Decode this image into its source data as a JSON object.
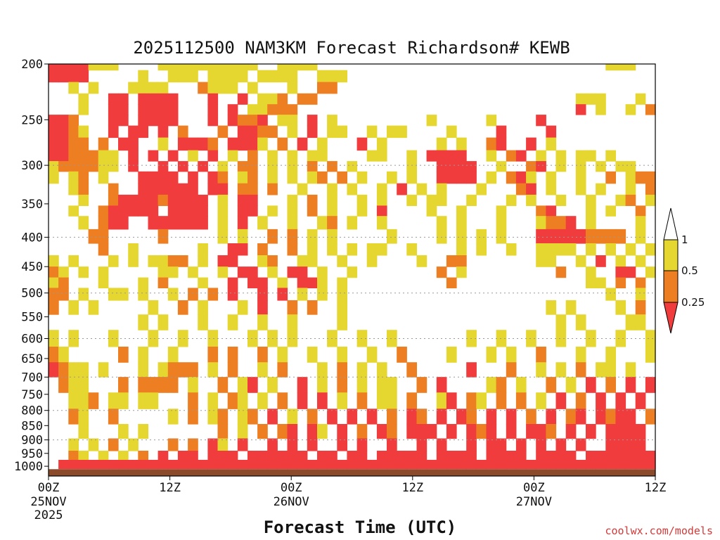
{
  "chart_data": {
    "type": "heatmap",
    "title": "2025112500 NAM3KM Forecast Richardson# KEWB",
    "xlabel": "Forecast Time (UTC)",
    "ylabel": "",
    "x_range_hours": [
      0,
      60
    ],
    "y_axis": {
      "type": "log-pressure",
      "range_hPa": [
        1000,
        200
      ],
      "inverted": true
    },
    "y_ticks": [
      200,
      250,
      300,
      350,
      400,
      450,
      500,
      550,
      600,
      650,
      700,
      750,
      800,
      850,
      900,
      950,
      1000
    ],
    "y_gridlines": [
      300,
      400,
      500,
      600,
      700,
      800,
      900
    ],
    "x_ticks": [
      {
        "hour": 0,
        "label": "00Z",
        "date": "25NOV",
        "year": "2025"
      },
      {
        "hour": 12,
        "label": "12Z",
        "date": "",
        "year": ""
      },
      {
        "hour": 24,
        "label": "00Z",
        "date": "26NOV",
        "year": ""
      },
      {
        "hour": 36,
        "label": "12Z",
        "date": "",
        "year": ""
      },
      {
        "hour": 48,
        "label": "00Z",
        "date": "27NOV",
        "year": ""
      },
      {
        "hour": 60,
        "label": "12Z",
        "date": "",
        "year": ""
      }
    ],
    "colorbar": {
      "labels": [
        "1",
        "0.5",
        "0.25"
      ],
      "bins": [
        {
          "range": "<0.25",
          "color": "#f03c3c"
        },
        {
          "range": "0.25-0.5",
          "color": "#ee7e22"
        },
        {
          "range": "0.5-1",
          "color": "#e6d630"
        },
        {
          "range": ">1",
          "color": "#ffffff"
        }
      ]
    },
    "cell_columns": 61,
    "cell_rows": 33,
    "row_pressure_hPa": [
      200,
      210,
      220,
      230,
      240,
      250,
      262,
      275,
      290,
      300,
      315,
      330,
      345,
      360,
      375,
      400,
      420,
      440,
      460,
      480,
      500,
      530,
      560,
      600,
      640,
      680,
      720,
      770,
      820,
      870,
      920,
      960,
      990
    ],
    "grid": [
      "3333111....1111111111..1111.............................111..",
      "3333.....1..111.1111.1111..111..................................11..",
      "..1.1...1111...2111.1...1..22..................................1..1..",
      "...1..33.3333...3..3.112.22..........................111...1.1111",
      "...1..33.3333...3.3.11222............................3.1..1.2..1",
      "332...33.3333...3.3223.11.3.1.........1.....1....3.................2.",
      "3321..3.33.3.2...2.3322.1.3.11..1.11....1....3....3..........",
      "3322.2.33..1.3332.3331.2.3.1...3.1.....1.1..23..3.1..........",
      "3322211.3.3.3.1.3.1.2.1.1.11....11..1.3333..1.23.1.1.11.1.....",
      "1222211.3..3.3.3.1.22.1.1.2.2.1.....1..3333..1..23.1.1.1.11....",
      "1.12.1...3333.3.32.12.1.1.12.2.1..1.1..3333.1.231.1..1..2.122.",
      "..12..2..333333.33.22.2..1..1.1..1.3.1.1...1...23.1..1.1..1.22.1",
      "...1..2333323333.1.33...1.2.1..1.1..1.11..1...1.1..1..1..12.1.1",
      "..1..233333.3333.1.33.1.1.2.1..1.3....1..1...1...23...1.1..2.1.",
      "...1.233..333333.1.3.1..1..12.1..1.....1.1...1...1223.1....1..2",
      "....22.....2.....1.1..2.2.1.1.....1....1.1.1.1...333332222.1..1.2",
      ".....2..1......1..33.2..2.1.1.1.11..1....1.1..1..1111.1.1.1.1.1.",
      "1.1...1.1.1122.1.33..12..11..1..1....1..22.......11..1.3.1.1..",
      "21.1.1.....11.1..1.33.1.33.1..1........2.1.........2..1..33.1.",
      "12...1...1.2...1..3.33.1.331.1..........2.............11.2.2.2.",
      "22.1..11.1..1.2.2.3..3.3.1.1.1..........................1..1.13.",
      "2.1.1.....1..2.1...1.3..2.2..1....................1.1....1.2.1.",
      ".........1.1...1..1..1..1....1.....................1.1....11.12",
      "1.1...1...1..1..1...1.1.1...1..1..1.......1..1..1..1..1..1..1..",
      "21.....2.1..1...2.2..2.1..1..1..1..2....1...1.1..2...1..1...1..",
      "3211.1...1.1222.1.2..1.2...1.2.1.1..2.....3...2..1.1.2.11.1..2.1",
      ".211...2.2222.1..2.13.1..3.1.2.1.11..2.3....12.1..2.1.3.2.3.3.22",
      "..112.11.11...2.1.21.1.2.3.3.1.2.11.2..13.21.2.2.1.3.2.3.3.3.2",
      "..21..2.....1.2.12.12.3.1.2.3.3.3.2.32.3.32.3.3.2.3.23.3233.23",
      "...1...1.1.......2.1.2.23.31.3.2.32.333.3.323.3.332.3.3.3333.33",
      "..1.1.2.1...2.2.31.3..3.3.3..3.3..3..3.3..3.33.3.3.3.3..3333..",
      "..21.1.1.2.3.33.333.333333.33.33.33333.3333.3333.3333.333333333",
      ".33333333333333333333333333333333333333333333333333333333333333"
    ],
    "surface_color": "#8b4a2a"
  },
  "credit": "coolwx.com/models"
}
